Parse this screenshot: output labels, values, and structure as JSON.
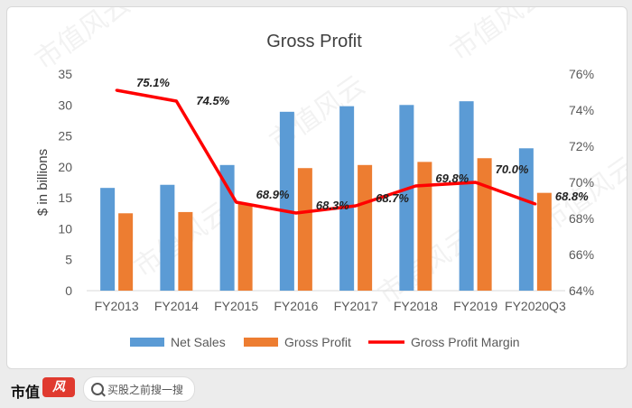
{
  "chart_data": {
    "type": "bar+line",
    "title": "Gross Profit",
    "ylabel": "$ in billions",
    "categories": [
      "FY2013",
      "FY2014",
      "FY2015",
      "FY2016",
      "FY2017",
      "FY2018",
      "FY2019",
      "FY2020Q3"
    ],
    "series": [
      {
        "name": "Net Sales",
        "type": "bar",
        "axis": "left",
        "color": "#5b9bd5",
        "values": [
          16.6,
          17.1,
          20.3,
          28.9,
          29.8,
          30.0,
          30.6,
          23.0
        ]
      },
      {
        "name": "Gross Profit",
        "type": "bar",
        "axis": "left",
        "color": "#ed7d31",
        "values": [
          12.5,
          12.7,
          14.0,
          19.8,
          20.3,
          20.8,
          21.4,
          15.8
        ]
      },
      {
        "name": "Gross Profit Margin",
        "type": "line",
        "axis": "right",
        "color": "#ff0000",
        "values": [
          75.1,
          74.5,
          68.9,
          68.3,
          68.7,
          69.8,
          70.0,
          68.8
        ],
        "labels": [
          "75.1%",
          "74.5%",
          "68.9%",
          "68.3%",
          "68.7%",
          "69.8%",
          "70.0%",
          "68.8%"
        ]
      }
    ],
    "ylim_left": [
      0,
      35
    ],
    "yticks_left": [
      "0",
      "5",
      "10",
      "15",
      "20",
      "25",
      "30",
      "35"
    ],
    "ylim_right": [
      64,
      76
    ],
    "yticks_right": [
      "64%",
      "66%",
      "68%",
      "70%",
      "72%",
      "74%",
      "76%"
    ],
    "grid": false,
    "legend_position": "bottom"
  },
  "watermark": "市值风云",
  "footer": {
    "brand": "市值",
    "search_placeholder": "买股之前搜一搜"
  }
}
